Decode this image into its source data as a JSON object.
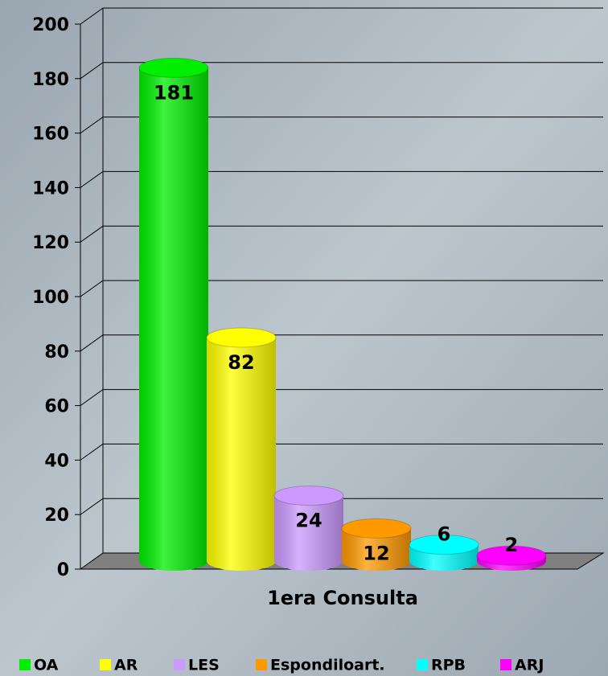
{
  "chart_data": {
    "type": "bar3d",
    "categories": [
      "1era Consulta"
    ],
    "series": [
      {
        "name": "OA",
        "color": "#00ee00",
        "values": [
          181
        ]
      },
      {
        "name": "AR",
        "color": "#ffff00",
        "values": [
          82
        ]
      },
      {
        "name": "LES",
        "color": "#cc99ff",
        "values": [
          24
        ]
      },
      {
        "name": "Espondiloart.",
        "color": "#ff9900",
        "values": [
          12
        ]
      },
      {
        "name": "RPB",
        "color": "#00ffff",
        "values": [
          6
        ]
      },
      {
        "name": "ARJ",
        "color": "#ff00ff",
        "values": [
          2
        ]
      }
    ],
    "ylim": [
      0,
      200
    ],
    "yticks": [
      0,
      20,
      40,
      60,
      80,
      100,
      120,
      140,
      160,
      180,
      200
    ],
    "grid": true,
    "legend": "bottom"
  }
}
